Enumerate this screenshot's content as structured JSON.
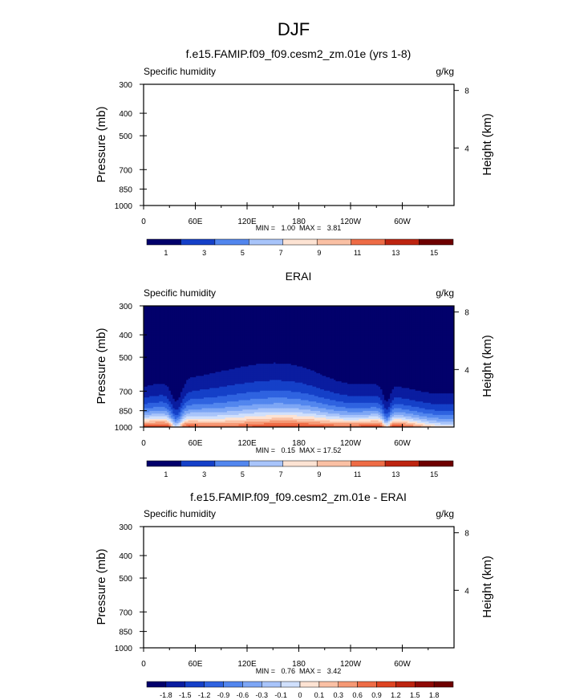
{
  "figure_title": "DJF",
  "chart_data": [
    {
      "type": "heatmap",
      "title": "f.e15.FAMIP.f09_f09.cesm2_zm.01e (yrs 1-8)",
      "subtitle_left": "Specific humidity",
      "subtitle_right": "g/kg",
      "ylabel": "Pressure (mb)",
      "ylabel_right": "Height (km)",
      "x_ticks": [
        "0",
        "60E",
        "120E",
        "180",
        "120W",
        "60W"
      ],
      "y_ticks": [
        "300",
        "400",
        "500",
        "700",
        "850",
        "1000"
      ],
      "right_ticks": [
        "8",
        "4"
      ],
      "ylim": [
        1000,
        300
      ],
      "xlim": [
        0,
        360
      ],
      "stats": "MIN =   1.00  MAX =   3.81",
      "field": "empty",
      "colorbar_labels": [
        "1",
        "3",
        "5",
        "7",
        "9",
        "11",
        "13",
        "15"
      ]
    },
    {
      "type": "heatmap",
      "title": "ERAI",
      "subtitle_left": "Specific humidity",
      "subtitle_right": "g/kg",
      "ylabel": "Pressure (mb)",
      "ylabel_right": "Height (km)",
      "x_ticks": [
        "0",
        "60E",
        "120E",
        "180",
        "120W",
        "60W"
      ],
      "y_ticks": [
        "300",
        "400",
        "500",
        "700",
        "850",
        "1000"
      ],
      "right_ticks": [
        "8",
        "4"
      ],
      "ylim": [
        1000,
        300
      ],
      "xlim": [
        0,
        360
      ],
      "stats": "MIN =   0.15  MAX = 17.52",
      "field": "specific_humidity",
      "colorbar_labels": [
        "1",
        "3",
        "5",
        "7",
        "9",
        "11",
        "13",
        "15"
      ]
    },
    {
      "type": "heatmap",
      "title": "f.e15.FAMIP.f09_f09.cesm2_zm.01e - ERAI",
      "subtitle_left": "Specific humidity",
      "subtitle_right": "g/kg",
      "ylabel": "Pressure (mb)",
      "ylabel_right": "Height (km)",
      "x_ticks": [
        "0",
        "60E",
        "120E",
        "180",
        "120W",
        "60W"
      ],
      "y_ticks": [
        "300",
        "400",
        "500",
        "700",
        "850",
        "1000"
      ],
      "right_ticks": [
        "8",
        "4"
      ],
      "ylim": [
        1000,
        300
      ],
      "xlim": [
        0,
        360
      ],
      "stats": "MIN =   0.76  MAX =   3.42",
      "field": "empty",
      "colorbar_labels": [
        "-1.8",
        "-1.5",
        "-1.2",
        "-0.9",
        "-0.6",
        "-0.3",
        "-0.1",
        "0",
        "0.1",
        "0.3",
        "0.6",
        "0.9",
        "1.2",
        "1.5",
        "1.8"
      ]
    }
  ],
  "colorbar_colors": [
    "#02006b",
    "#0a1da0",
    "#1540c8",
    "#2f63e0",
    "#5286ee",
    "#7da6f5",
    "#a8c4fa",
    "#d0e0fc",
    "#fde3d3",
    "#fac0a4",
    "#f59874",
    "#ee6c46",
    "#de4422",
    "#bd2410",
    "#8f0a06",
    "#6e0000"
  ]
}
